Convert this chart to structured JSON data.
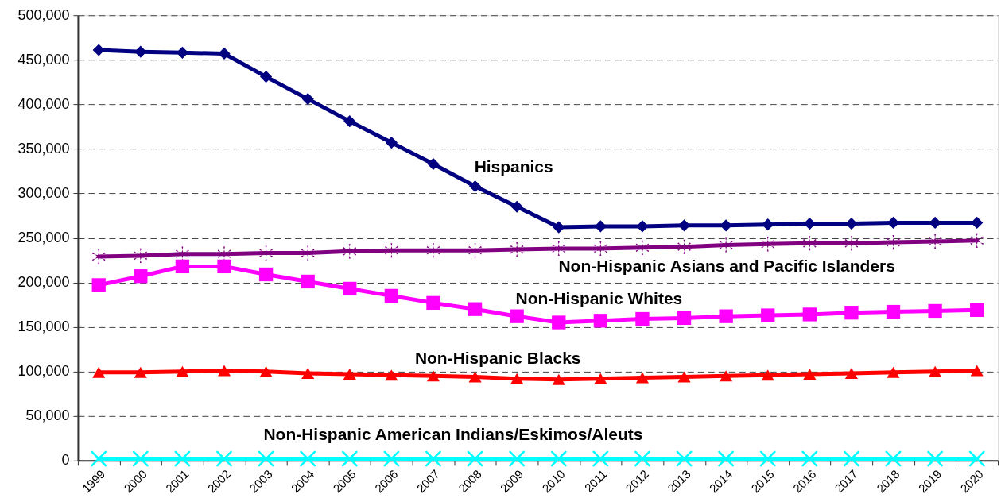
{
  "chart_data": {
    "type": "line",
    "categories": [
      "1999",
      "2000",
      "2001",
      "2002",
      "2003",
      "2004",
      "2005",
      "2006",
      "2007",
      "2008",
      "2009",
      "2010",
      "2011",
      "2012",
      "2013",
      "2014",
      "2015",
      "2016",
      "2017",
      "2018",
      "2019",
      "2020"
    ],
    "series": [
      {
        "name": "Hispanics",
        "color": "#000080",
        "marker": "diamond",
        "values": [
          461000,
          459000,
          458000,
          457000,
          431000,
          406000,
          381000,
          357000,
          333000,
          308000,
          285000,
          262000,
          263000,
          263000,
          264000,
          264000,
          265000,
          266000,
          266000,
          267000,
          267000,
          267000
        ]
      },
      {
        "name": "Non-Hispanic Asians and Pacific Islanders",
        "color": "#800080",
        "marker": "star",
        "values": [
          229000,
          230000,
          232000,
          232000,
          233000,
          233000,
          235000,
          236000,
          236000,
          236000,
          237000,
          238000,
          238000,
          239000,
          240000,
          242000,
          243000,
          244000,
          244000,
          245000,
          246000,
          247000
        ]
      },
      {
        "name": "Non-Hispanic Whites",
        "color": "#ff00ff",
        "marker": "square",
        "values": [
          197000,
          207000,
          218000,
          218000,
          209000,
          201000,
          193000,
          185000,
          177000,
          170000,
          162000,
          155000,
          157000,
          159000,
          160000,
          162000,
          163000,
          164000,
          166000,
          167000,
          168000,
          169000
        ]
      },
      {
        "name": "Non-Hispanic Blacks",
        "color": "#ff0000",
        "marker": "triangle",
        "values": [
          99000,
          99000,
          100000,
          101000,
          100000,
          98000,
          97000,
          96000,
          95000,
          94000,
          92000,
          91000,
          92000,
          93000,
          94000,
          95000,
          96000,
          97000,
          98000,
          99000,
          100000,
          101000
        ]
      },
      {
        "name": "Non-Hispanic American Indians/Eskimos/Aleuts",
        "color": "#00ffff",
        "marker": "cross",
        "values": [
          2000,
          2000,
          2000,
          2000,
          2000,
          2000,
          2000,
          2000,
          2000,
          2000,
          2000,
          2000,
          2000,
          2000,
          2000,
          2000,
          2000,
          2000,
          2000,
          2000,
          2000,
          2000
        ]
      }
    ],
    "ylim": [
      0,
      500000
    ],
    "yticks": [
      0,
      {
        "value": 50000,
        "label": "50,000"
      },
      {
        "value": 100000,
        "label": "100,000"
      },
      {
        "value": 150000,
        "label": "150,000"
      },
      {
        "value": 200000,
        "label": "200,000"
      },
      {
        "value": 250000,
        "label": "250,000"
      },
      {
        "value": 300000,
        "label": "300,000"
      },
      {
        "value": 350000,
        "label": "350,000"
      },
      {
        "value": 400000,
        "label": "400,000"
      },
      {
        "value": 450000,
        "label": "450,000"
      },
      {
        "value": 500000,
        "label": "500,000"
      }
    ],
    "grid": "y",
    "legend": false,
    "line_style": "solid"
  }
}
